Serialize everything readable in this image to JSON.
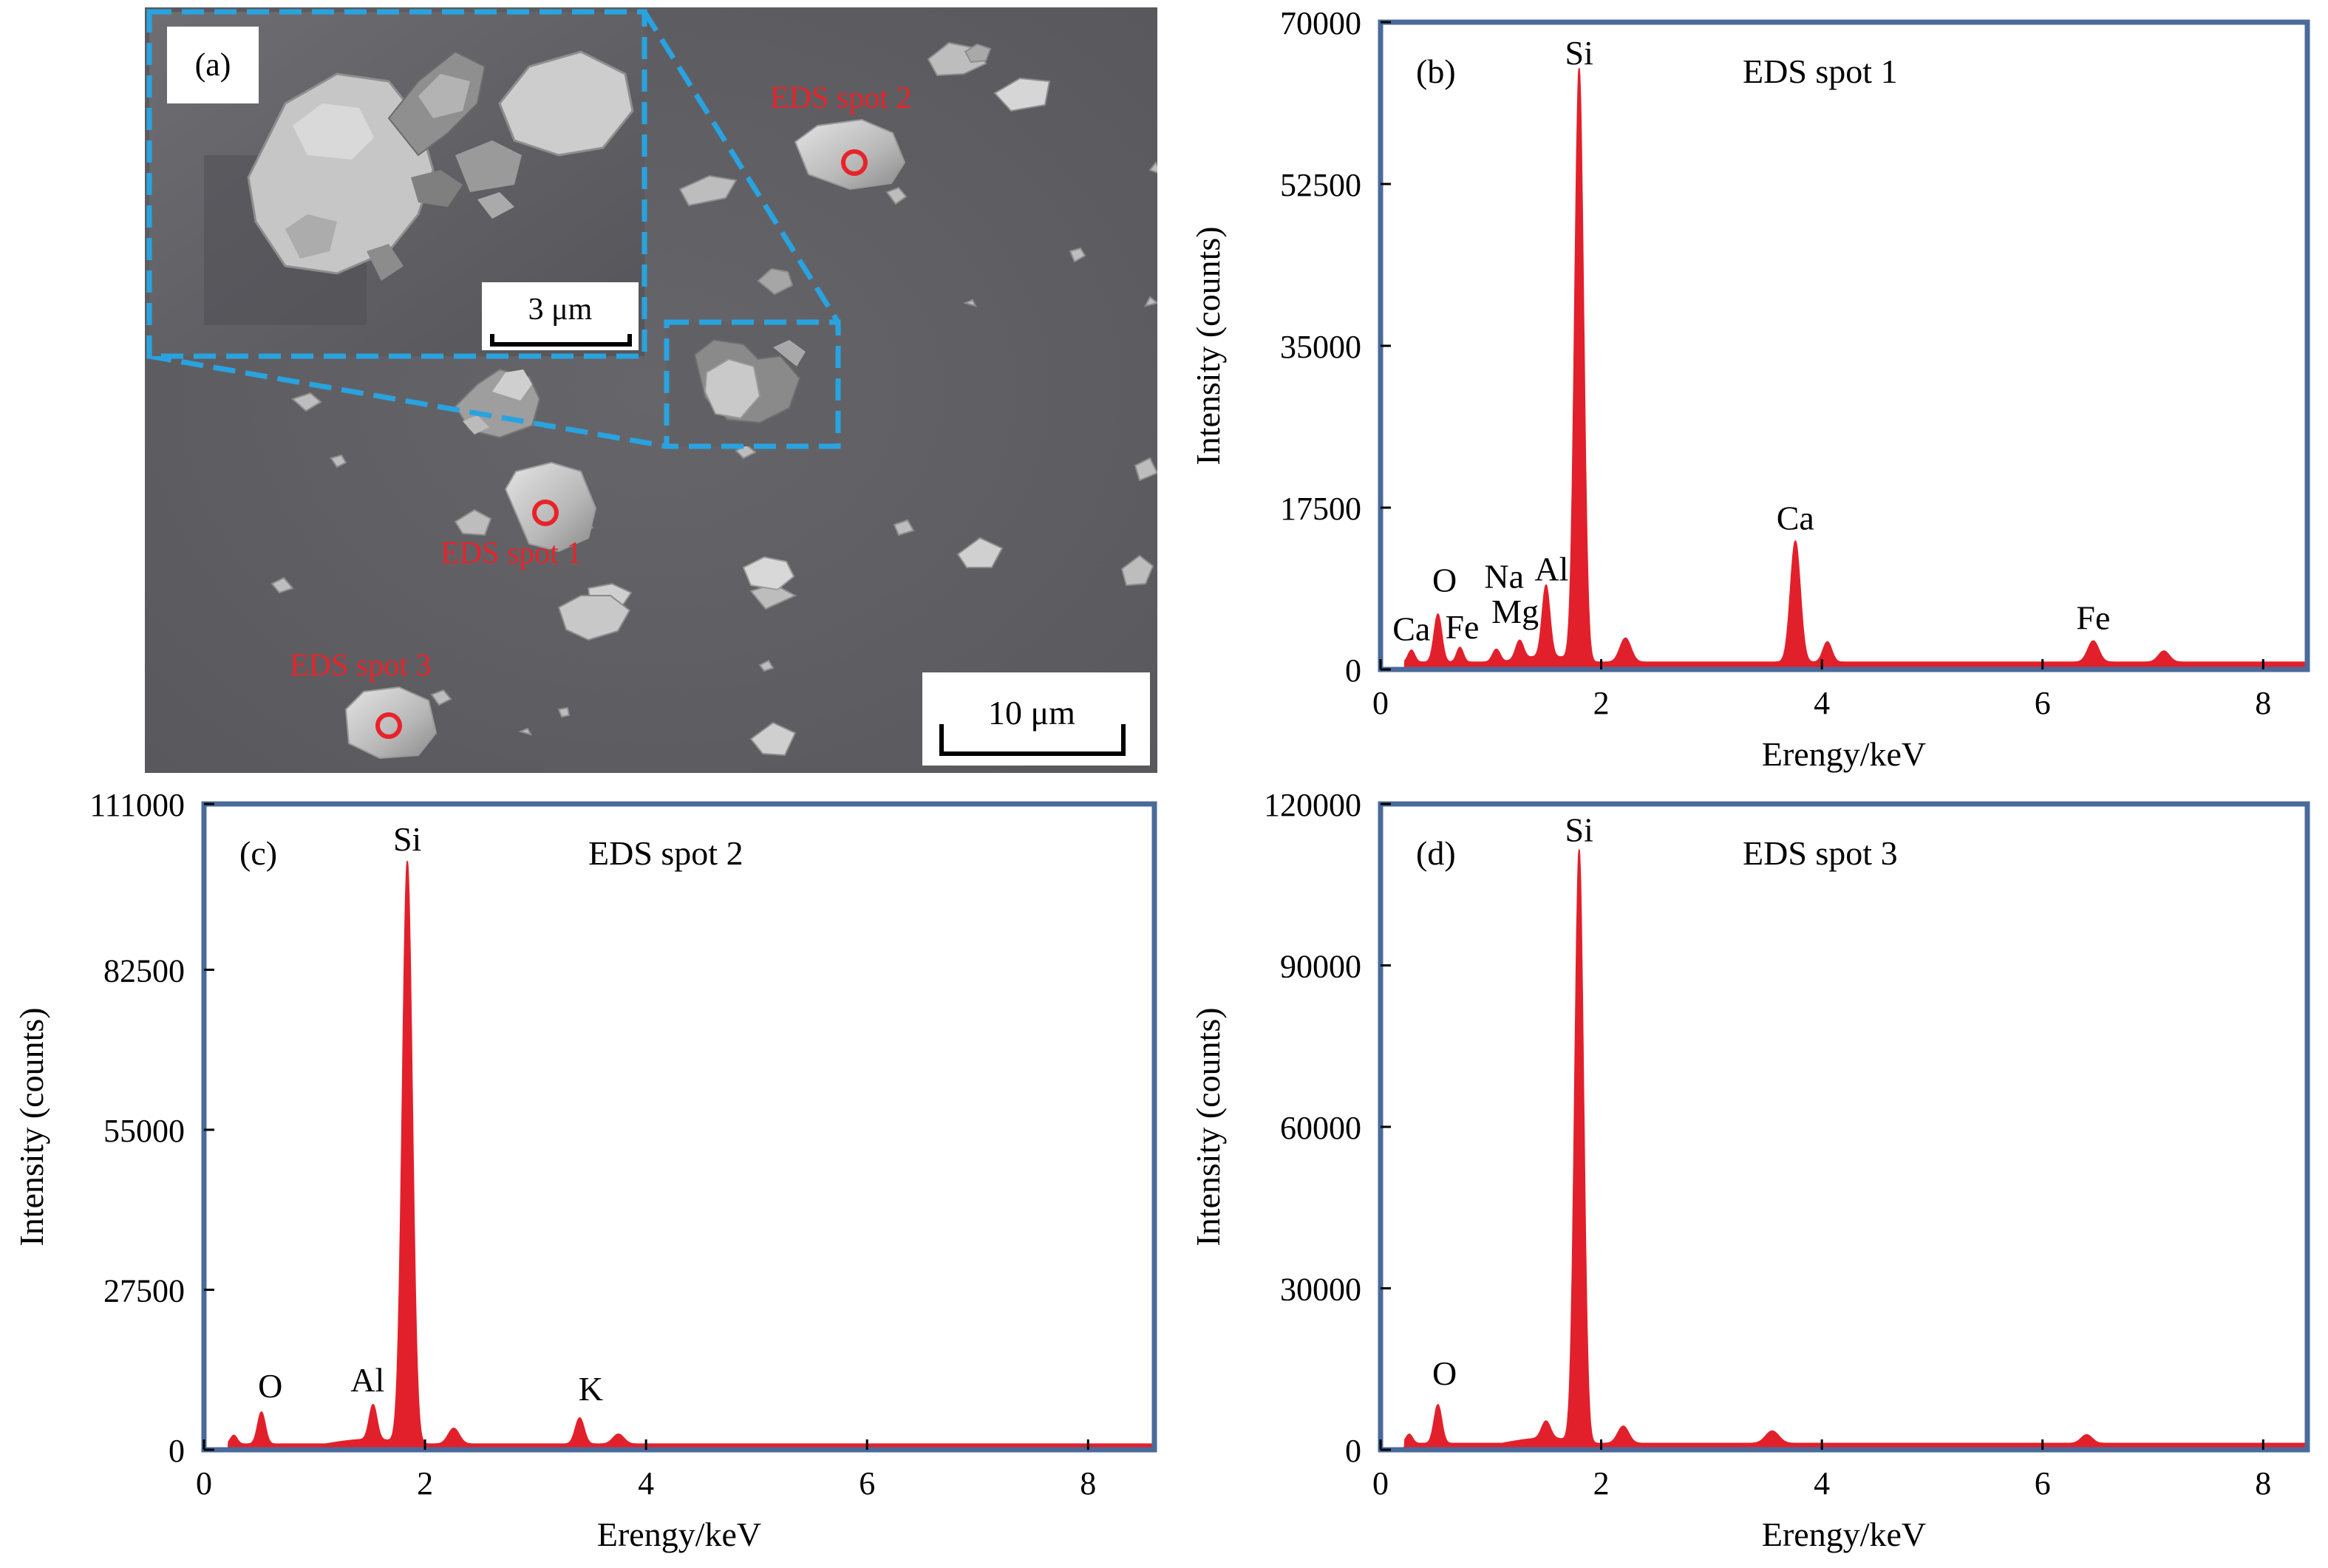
{
  "sem": {
    "panel_label": "(a)",
    "inset_scale": "3 μm",
    "main_scale": "10 μm",
    "spots": [
      {
        "label": "EDS spot 1"
      },
      {
        "label": "EDS spot 2"
      },
      {
        "label": "EDS spot 3"
      }
    ],
    "colors": {
      "background": "#5e5e61",
      "inset_border": "#29a3e0",
      "spot": "#e8232a"
    }
  },
  "colors": {
    "frame": "#4a6a9a",
    "peak": "#e2202b",
    "axis": "#000000"
  },
  "chart_data": [
    {
      "id": "b",
      "type": "area",
      "panel_label": "(b)",
      "title": "EDS spot 1",
      "xlabel": "Erengy/keV",
      "ylabel": "Intensity (counts)",
      "xlim": [
        0,
        8.4
      ],
      "ylim": [
        0,
        70000
      ],
      "xticks": [
        0,
        2,
        4,
        6,
        8
      ],
      "yticks": [
        0,
        17500,
        35000,
        52500,
        70000
      ],
      "baseline": 800,
      "peaks": [
        {
          "x": 0.28,
          "y": 1300,
          "w": 0.03
        },
        {
          "x": 0.52,
          "y": 5200,
          "w": 0.035
        },
        {
          "x": 0.72,
          "y": 1600,
          "w": 0.03
        },
        {
          "x": 1.05,
          "y": 1400,
          "w": 0.035
        },
        {
          "x": 1.26,
          "y": 2000,
          "w": 0.035
        },
        {
          "x": 1.5,
          "y": 7700,
          "w": 0.035
        },
        {
          "x": 1.8,
          "y": 64000,
          "w": 0.04
        },
        {
          "x": 2.22,
          "y": 2600,
          "w": 0.05
        },
        {
          "x": 3.76,
          "y": 13100,
          "w": 0.045
        },
        {
          "x": 4.05,
          "y": 2200,
          "w": 0.04
        },
        {
          "x": 6.46,
          "y": 2300,
          "w": 0.05
        },
        {
          "x": 7.1,
          "y": 1200,
          "w": 0.05
        }
      ],
      "annotations": [
        {
          "text": "Si",
          "x": 1.8,
          "y": 64800
        },
        {
          "text": "Ca",
          "x": 3.76,
          "y": 14500
        },
        {
          "text": "Fe",
          "x": 6.46,
          "y": 3700
        },
        {
          "text": "O",
          "x": 0.58,
          "y": 7800
        },
        {
          "text": "Na",
          "x": 1.12,
          "y": 8200
        },
        {
          "text": "Al",
          "x": 1.55,
          "y": 9000
        },
        {
          "text": "Mg",
          "x": 1.22,
          "y": 4400
        },
        {
          "text": "Ca",
          "x": 0.28,
          "y": 2500
        },
        {
          "text": "Fe",
          "x": 0.74,
          "y": 2700
        }
      ]
    },
    {
      "id": "c",
      "type": "area",
      "panel_label": "(c)",
      "title": "EDS spot 2",
      "xlabel": "Erengy/keV",
      "ylabel": "Intensity (counts)",
      "xlim": [
        0,
        8.6
      ],
      "ylim": [
        0,
        111000
      ],
      "xticks": [
        0,
        2,
        4,
        6,
        8
      ],
      "yticks": [
        0,
        27500,
        55000,
        82500,
        111000
      ],
      "baseline": 1000,
      "peaks": [
        {
          "x": 0.27,
          "y": 1500,
          "w": 0.03
        },
        {
          "x": 0.52,
          "y": 5500,
          "w": 0.035
        },
        {
          "x": 1.53,
          "y": 6000,
          "w": 0.035
        },
        {
          "x": 1.84,
          "y": 100000,
          "w": 0.045
        },
        {
          "x": 2.26,
          "y": 2700,
          "w": 0.05
        },
        {
          "x": 3.4,
          "y": 4500,
          "w": 0.04
        },
        {
          "x": 3.75,
          "y": 1700,
          "w": 0.05
        }
      ],
      "annotations": [
        {
          "text": "Si",
          "x": 1.84,
          "y": 102000
        },
        {
          "text": "O",
          "x": 0.6,
          "y": 8000
        },
        {
          "text": "Al",
          "x": 1.48,
          "y": 9000
        },
        {
          "text": "K",
          "x": 3.5,
          "y": 7500
        }
      ]
    },
    {
      "id": "d",
      "type": "area",
      "panel_label": "(d)",
      "title": "EDS spot 3",
      "xlabel": "Erengy/keV",
      "ylabel": "Intensity (counts)",
      "xlim": [
        0,
        8.4
      ],
      "ylim": [
        0,
        120000
      ],
      "xticks": [
        0,
        2,
        4,
        6,
        8
      ],
      "yticks": [
        0,
        30000,
        60000,
        90000,
        120000
      ],
      "baseline": 1200,
      "peaks": [
        {
          "x": 0.26,
          "y": 1700,
          "w": 0.03
        },
        {
          "x": 0.52,
          "y": 7200,
          "w": 0.035
        },
        {
          "x": 1.5,
          "y": 3200,
          "w": 0.04
        },
        {
          "x": 1.8,
          "y": 110000,
          "w": 0.04
        },
        {
          "x": 2.2,
          "y": 3200,
          "w": 0.05
        },
        {
          "x": 3.55,
          "y": 2300,
          "w": 0.06
        },
        {
          "x": 6.4,
          "y": 1600,
          "w": 0.05
        }
      ],
      "annotations": [
        {
          "text": "Si",
          "x": 1.8,
          "y": 112000
        },
        {
          "text": "O",
          "x": 0.58,
          "y": 11000
        }
      ]
    }
  ]
}
